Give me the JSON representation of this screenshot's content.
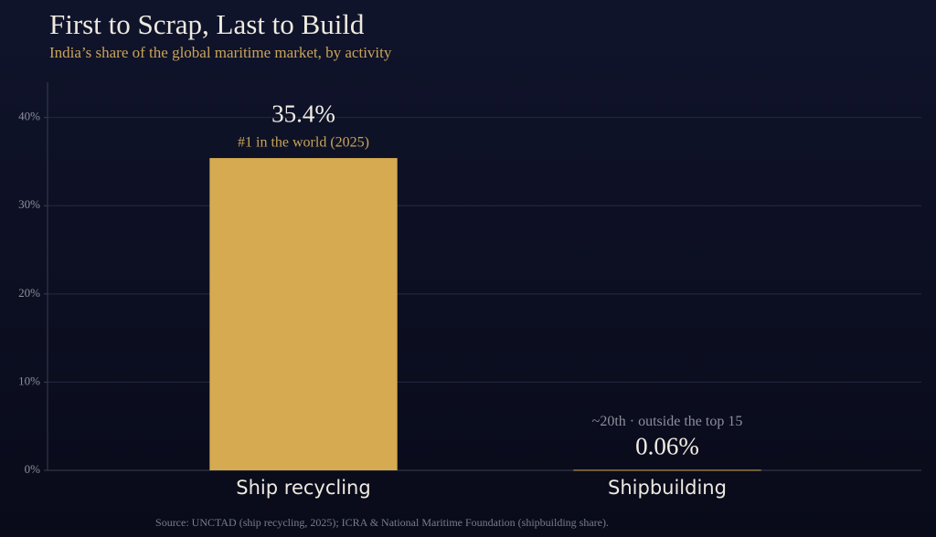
{
  "chart_data": {
    "type": "bar",
    "title": "First to Scrap, Last to Build",
    "subtitle": "India’s share of the global maritime market, by activity",
    "categories": [
      "Ship recycling",
      "Shipbuilding"
    ],
    "values": [
      35.4,
      0.06
    ],
    "value_labels": [
      "35.4%",
      "0.06%"
    ],
    "annotations": [
      "#1 in the world (2025)",
      "~20th · outside the top 15"
    ],
    "color": "#d6aa50",
    "ylim": [
      0,
      44
    ],
    "yticks": [
      {
        "value": 0,
        "label": "0%"
      },
      {
        "value": 10,
        "label": "10%"
      },
      {
        "value": 20,
        "label": "20%"
      },
      {
        "value": 30,
        "label": "30%"
      },
      {
        "value": 40,
        "label": "40%"
      }
    ],
    "grid": true,
    "source": "Source: UNCTAD (ship recycling, 2025); ICRA & National Maritime Foundation (shipbuilding share)."
  }
}
